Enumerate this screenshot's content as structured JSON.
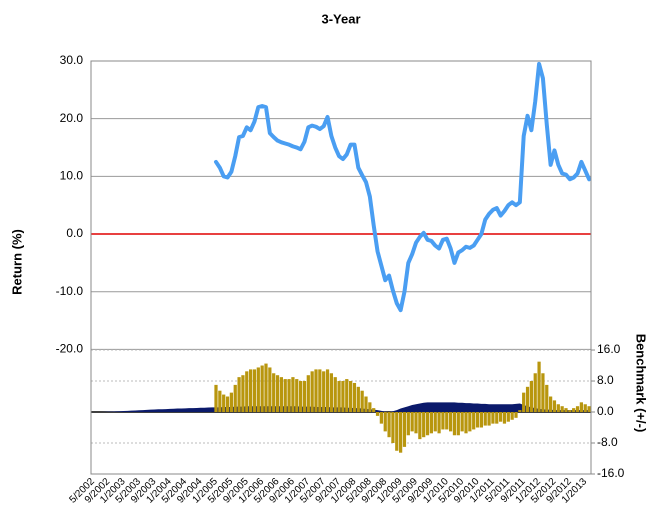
{
  "chart_data": {
    "type": "line",
    "title": "3-Year",
    "y_label": "Return (%)",
    "y2_label": "Benchmark (+/-)",
    "categories": [
      "5/2002",
      null,
      null,
      null,
      "9/2002",
      null,
      null,
      null,
      "1/2003",
      null,
      null,
      null,
      "5/2003",
      null,
      null,
      null,
      "9/2003",
      null,
      null,
      null,
      "1/2004",
      null,
      null,
      null,
      "5/2004",
      null,
      null,
      null,
      "9/2004",
      null,
      null,
      null,
      "1/2005",
      null,
      null,
      null,
      "5/2005",
      null,
      null,
      null,
      "9/2005",
      null,
      null,
      null,
      "1/2006",
      null,
      null,
      null,
      "5/2006",
      null,
      null,
      null,
      "9/2006",
      null,
      null,
      null,
      "1/2007",
      null,
      null,
      null,
      "5/2007",
      null,
      null,
      null,
      "9/2007",
      null,
      null,
      null,
      "1/2008",
      null,
      null,
      null,
      "5/2008",
      null,
      null,
      null,
      "9/2008",
      null,
      null,
      null,
      "1/2009",
      null,
      null,
      null,
      "5/2009",
      null,
      null,
      null,
      "9/2009",
      null,
      null,
      null,
      "1/2010",
      null,
      null,
      null,
      "5/2010",
      null,
      null,
      null,
      "9/2010",
      null,
      null,
      null,
      "1/2011",
      null,
      null,
      null,
      "5/2011",
      null,
      null,
      null,
      "9/2011",
      null,
      null,
      null,
      "1/2012",
      null,
      null,
      null,
      "5/2012",
      null,
      null,
      null,
      "9/2012",
      null,
      null,
      null,
      "1/2013",
      null
    ],
    "series": [
      {
        "type": "area",
        "axis": "y2",
        "color": "#0b1a6b",
        "values": [
          0,
          0,
          0,
          0.05,
          0.1,
          0.1,
          0.15,
          0.2,
          0.25,
          0.3,
          0.35,
          0.4,
          0.45,
          0.5,
          0.55,
          0.6,
          0.65,
          0.7,
          0.7,
          0.75,
          0.8,
          0.85,
          0.9,
          0.9,
          0.95,
          1,
          1,
          1.05,
          1.1,
          1.1,
          1.15,
          1.2,
          1.2,
          1.2,
          1.3,
          1.3,
          1.3,
          1.4,
          1.4,
          1.4,
          1.5,
          1.5,
          1.5,
          1.5,
          1.5,
          1.5,
          1.5,
          1.5,
          1.5,
          1.5,
          1.5,
          1.5,
          1.5,
          1.5,
          1.4,
          1.4,
          1.4,
          1.4,
          1.3,
          1.3,
          1.3,
          1.3,
          1.2,
          1.2,
          1.2,
          1.2,
          1.1,
          1.1,
          1.0,
          1.0,
          0.9,
          0.8,
          0.7,
          0.6,
          0.5,
          0.3,
          0.1,
          0,
          0.2,
          0.5,
          0.9,
          1.2,
          1.5,
          1.8,
          2,
          2.2,
          2.4,
          2.5,
          2.5,
          2.5,
          2.5,
          2.5,
          2.5,
          2.5,
          2.5,
          2.4,
          2.4,
          2.3,
          2.3,
          2.2,
          2.2,
          2.1,
          2.1,
          2,
          2,
          2,
          2,
          2,
          2,
          2,
          2.1,
          2.2,
          1.8,
          1.5,
          1.2,
          1,
          0.8,
          0.7,
          0.6,
          0.6,
          0.5,
          0.5,
          0.5,
          0.5,
          0.5,
          0.5,
          0.5,
          0.5,
          0.5,
          0.5
        ]
      },
      {
        "type": "bar",
        "axis": "y2",
        "color": "#b8960e",
        "values": [
          null,
          null,
          null,
          null,
          null,
          null,
          null,
          null,
          null,
          null,
          null,
          null,
          null,
          null,
          null,
          null,
          null,
          null,
          null,
          null,
          null,
          null,
          null,
          null,
          null,
          null,
          null,
          null,
          null,
          null,
          null,
          null,
          7,
          5.5,
          4.5,
          4,
          5,
          7,
          9,
          9.5,
          10.5,
          11,
          11,
          11.5,
          12,
          12.5,
          11.5,
          10,
          9.5,
          9,
          8.5,
          8.5,
          9,
          8.5,
          8,
          8,
          9.5,
          10.5,
          11,
          11,
          10.5,
          11,
          10,
          9,
          8,
          8,
          8.5,
          8,
          7.5,
          6.5,
          5.5,
          4,
          2.5,
          1,
          -1,
          -3,
          -5,
          -6.5,
          -8,
          -10,
          -10.5,
          -9,
          -6,
          -5,
          -5.5,
          -7,
          -6.5,
          -6,
          -5.5,
          -5,
          -5.5,
          -4.5,
          -4.5,
          -5,
          -6,
          -6,
          -5,
          -5.5,
          -5,
          -4.5,
          -4,
          -4,
          -3.5,
          -3.5,
          -3,
          -3,
          -2.5,
          -3,
          -2.5,
          -2,
          -1.5,
          0.5,
          5,
          6.5,
          8,
          10,
          13,
          10,
          7,
          4,
          3,
          2,
          1.5,
          1,
          0.5,
          1,
          1.5,
          2.5,
          2,
          1.5
        ]
      },
      {
        "type": "line",
        "axis": "y",
        "color": "#4a9ef2",
        "values": [
          null,
          null,
          null,
          null,
          null,
          null,
          null,
          null,
          null,
          null,
          null,
          null,
          null,
          null,
          null,
          null,
          null,
          null,
          null,
          null,
          null,
          null,
          null,
          null,
          null,
          null,
          null,
          null,
          null,
          null,
          null,
          null,
          12.5,
          11.5,
          10,
          9.8,
          10.8,
          13.5,
          16.8,
          17,
          18.5,
          18,
          19.5,
          22,
          22.2,
          22,
          17.5,
          16.8,
          16.2,
          15.9,
          15.7,
          15.5,
          15.2,
          15,
          14.7,
          16,
          18.5,
          18.8,
          18.6,
          18.2,
          18.7,
          20.3,
          17,
          15,
          13.5,
          13,
          13.8,
          15.5,
          15.5,
          11.5,
          10.2,
          9,
          6.5,
          1.5,
          -3,
          -5.5,
          -8,
          -7.2,
          -9.8,
          -12,
          -13.2,
          -10,
          -5,
          -3.5,
          -1.5,
          -0.5,
          0.2,
          -1,
          -1.2,
          -2,
          -2.5,
          -1,
          -0.8,
          -2.5,
          -5,
          -3.2,
          -2.8,
          -2.2,
          -2.4,
          -2,
          -1,
          0,
          2.5,
          3.5,
          4.2,
          4.5,
          3.2,
          4,
          5,
          5.5,
          5,
          5.5,
          17,
          20.5,
          18,
          23,
          29.5,
          27,
          19,
          12,
          14.5,
          12,
          10.5,
          10.3,
          9.5,
          9.8,
          10.5,
          12.5,
          11,
          9.5
        ]
      }
    ],
    "ylim": [
      -41.6,
      30
    ],
    "yticks": [
      {
        "value": 30,
        "label": "30.0"
      },
      {
        "value": 20,
        "label": "20.0"
      },
      {
        "value": 10,
        "label": "10.0"
      },
      {
        "value": 0,
        "label": "0.0"
      },
      {
        "value": -10,
        "label": "-10.0"
      },
      {
        "value": -20,
        "label": "-20.0"
      }
    ],
    "y2lim": [
      -16,
      90.6
    ],
    "y2ticks": [
      {
        "value": 16,
        "label": "16.0"
      },
      {
        "value": 8,
        "label": "8.0"
      },
      {
        "value": 0,
        "label": "0.0"
      },
      {
        "value": -8,
        "label": "-8.0"
      },
      {
        "value": -16,
        "label": "-16.0"
      }
    ],
    "grid": true
  }
}
